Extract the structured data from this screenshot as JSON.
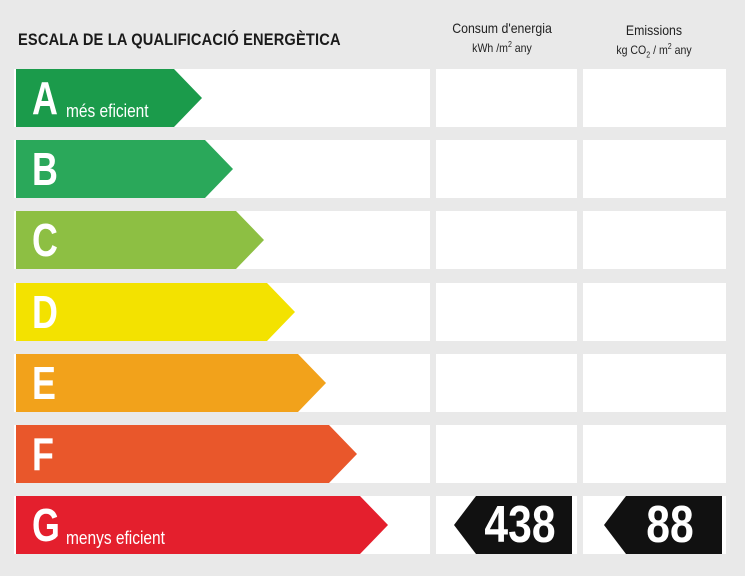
{
  "title": "ESCALA DE LA QUALIFICACIÓ ENERGÈTICA",
  "columns": {
    "consum": {
      "label": "Consum d'energia",
      "unit_prefix": "kWh /m",
      "unit_sup": "2",
      "unit_suffix": " any"
    },
    "emissions": {
      "label": "Emissions",
      "unit_prefix": "kg CO",
      "unit_sub": "2",
      "unit_mid": " / m",
      "unit_sup": "2",
      "unit_suffix": " any"
    }
  },
  "classes": [
    {
      "letter": "A",
      "sublabel": "més eficient",
      "color": "#1b9b4b"
    },
    {
      "letter": "B",
      "sublabel": "",
      "color": "#2aa85a"
    },
    {
      "letter": "C",
      "sublabel": "",
      "color": "#8dbf43"
    },
    {
      "letter": "D",
      "sublabel": "",
      "color": "#f3e200"
    },
    {
      "letter": "E",
      "sublabel": "",
      "color": "#f2a21b"
    },
    {
      "letter": "F",
      "sublabel": "",
      "color": "#e9572b"
    },
    {
      "letter": "G",
      "sublabel": "menys eficient",
      "color": "#e41f2d"
    }
  ],
  "rating": {
    "class": "G",
    "consum_value": "438",
    "emissions_value": "88",
    "badge_color": "#111111"
  }
}
